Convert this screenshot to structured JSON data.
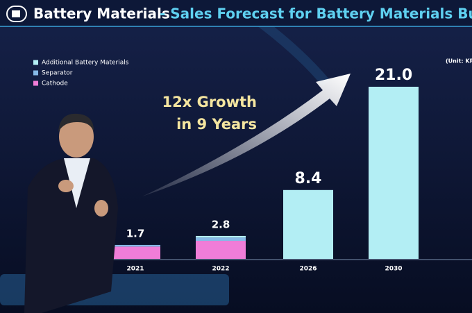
{
  "chart_data": {
    "type": "stacked-bar",
    "title": "Battery Materials",
    "subtitle": "- Sales Forecast for Battery Materials Business",
    "unit_note": "(Unit: KR",
    "annotations": [
      "12x Growth",
      "in 9 Years"
    ],
    "categories": [
      "2021",
      "2022",
      "2026",
      "2030"
    ],
    "series": [
      {
        "name": "Additional Battery Materials",
        "color": "#b3eef4",
        "values": [
          0,
          0.2,
          8.4,
          21.0
        ]
      },
      {
        "name": "Separator",
        "color": "#86b9e6",
        "values": [
          0.2,
          0.4,
          0,
          0
        ]
      },
      {
        "name": "Cathode",
        "color": "#f07dd8",
        "values": [
          1.5,
          2.2,
          0,
          0
        ]
      }
    ],
    "totals": [
      1.7,
      2.8,
      8.4,
      {
        "value": 21.0,
        "label": "21.0"
      }
    ],
    "ylim": [
      0,
      21.0
    ]
  }
}
